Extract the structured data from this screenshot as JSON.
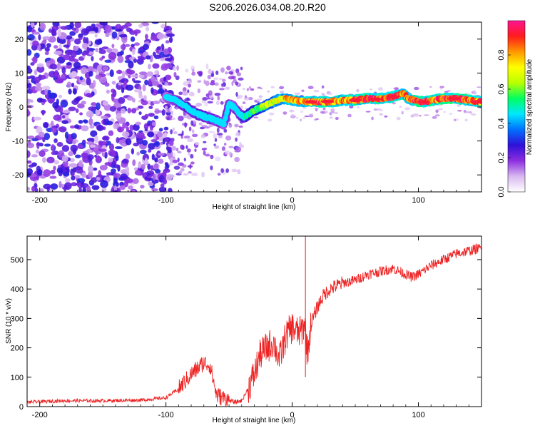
{
  "title": "S206.2026.034.08.20.R20",
  "chart_data": [
    {
      "type": "heatmap",
      "xlabel": "Height of straight line (km)",
      "ylabel": "Frequency (Hz)",
      "xlim": [
        -210,
        150
      ],
      "ylim": [
        -25,
        25
      ],
      "xticks": [
        -200,
        -100,
        0,
        100
      ],
      "yticks": [
        -20,
        -10,
        0,
        10,
        20
      ],
      "colorbar": {
        "label": "Normalized spectral amplitude",
        "range": [
          0,
          1
        ],
        "ticks": [
          "0.0",
          "0.2",
          "0.4",
          "0.6",
          "0.8"
        ],
        "tick_values": [
          0,
          0.2,
          0.4,
          0.6,
          0.8
        ],
        "colors": [
          "#ffffff",
          "#d8b8f0",
          "#8c2ee0",
          "#3010d8",
          "#0070ff",
          "#00e8ff",
          "#00ff60",
          "#b8ff00",
          "#ffff00",
          "#ff9800",
          "#ff1c1c",
          "#ff1493"
        ]
      },
      "ridge_x": [
        -100,
        -92,
        -84,
        -76,
        -68,
        -60,
        -54,
        -50,
        -46,
        -42,
        -38,
        -34,
        -30,
        -24,
        -18,
        -12,
        -6,
        0,
        10,
        20,
        30,
        40,
        50,
        60,
        70,
        80,
        84,
        88,
        92,
        96,
        104,
        112,
        120,
        130,
        140,
        150
      ],
      "ridge_y": [
        3,
        2,
        0,
        -2,
        -3,
        -4,
        -5,
        1,
        0,
        -2,
        -3,
        -2,
        -1,
        0,
        1,
        2,
        2.5,
        2,
        1.5,
        1.5,
        1.5,
        2,
        2,
        2.5,
        2.5,
        3,
        3.5,
        4,
        2.5,
        2,
        1.5,
        2,
        2.5,
        2.5,
        2,
        1.5
      ],
      "ridge_amplitude": [
        0.3,
        0.35,
        0.4,
        0.4,
        0.4,
        0.35,
        0.3,
        0.35,
        0.3,
        0.35,
        0.45,
        0.5,
        0.55,
        0.6,
        0.65,
        0.7,
        0.75,
        0.8,
        0.8,
        0.85,
        0.85,
        0.8,
        0.85,
        0.9,
        0.85,
        0.9,
        0.85,
        0.85,
        0.8,
        0.85,
        0.9,
        0.85,
        0.9,
        0.9,
        0.85,
        0.85
      ]
    },
    {
      "type": "line",
      "xlabel": "Height of straight line (km)",
      "ylabel": "SNR (10 * v/v)",
      "xlim": [
        -210,
        150
      ],
      "ylim": [
        0,
        580
      ],
      "xticks": [
        -200,
        -100,
        0,
        100
      ],
      "yticks": [
        0,
        100,
        200,
        300,
        400,
        500
      ],
      "series": [
        {
          "name": "SNR",
          "color": "#ee2222",
          "x": [
            -210,
            -180,
            -150,
            -120,
            -100,
            -90,
            -80,
            -75,
            -70,
            -65,
            -60,
            -55,
            -50,
            -45,
            -40,
            -35,
            -30,
            -25,
            -20,
            -15,
            -10,
            -5,
            0,
            5,
            8,
            10,
            12,
            15,
            20,
            25,
            30,
            40,
            50,
            60,
            70,
            80,
            90,
            95,
            100,
            110,
            120,
            130,
            140,
            150
          ],
          "y": [
            15,
            20,
            20,
            22,
            30,
            60,
            110,
            130,
            150,
            140,
            40,
            30,
            20,
            15,
            20,
            60,
            110,
            180,
            200,
            220,
            160,
            240,
            270,
            250,
            260,
            290,
            180,
            280,
            340,
            380,
            400,
            420,
            430,
            450,
            460,
            470,
            450,
            440,
            450,
            480,
            500,
            520,
            530,
            540
          ]
        }
      ]
    }
  ]
}
